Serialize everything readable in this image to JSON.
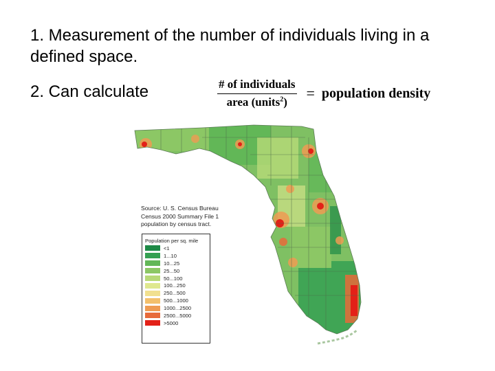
{
  "slide": {
    "point1": "1. Measurement of the number of individuals living in a defined space.",
    "point2": "2. Can calculate"
  },
  "formula": {
    "numerator": "# of individuals",
    "denominator": "area (units",
    "denominator_exp": "2",
    "denominator_close": ")",
    "equals": "=",
    "result": "population density"
  },
  "map": {
    "source_lines": [
      "Source: U. S. Census Bureau",
      "Census 2000 Summary File 1",
      "population by census tract."
    ],
    "legend_title": "Population per sq. mile",
    "legend": [
      {
        "label": "<1",
        "color": "#1e8a47"
      },
      {
        "label": "1...10",
        "color": "#35a052"
      },
      {
        "label": "10...25",
        "color": "#62b757"
      },
      {
        "label": "25...50",
        "color": "#8cc765"
      },
      {
        "label": "50...100",
        "color": "#b8d978"
      },
      {
        "label": "100...250",
        "color": "#dfe88f"
      },
      {
        "label": "250...500",
        "color": "#f1e08f"
      },
      {
        "label": "500...1000",
        "color": "#f3c06c"
      },
      {
        "label": "1000...2500",
        "color": "#ef9b52"
      },
      {
        "label": "2500...5000",
        "color": "#e76a3a"
      },
      {
        "label": ">5000",
        "color": "#e32118"
      }
    ]
  }
}
